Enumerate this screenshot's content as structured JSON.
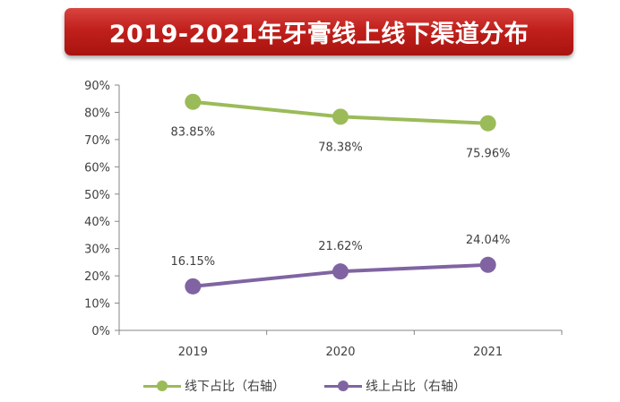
{
  "title": "2019-2021年牙膏线上线下渠道分布",
  "chart_data": {
    "type": "line",
    "title": "2019-2021年牙膏线上线下渠道分布",
    "categories": [
      "2019",
      "2020",
      "2021"
    ],
    "ylim": [
      0,
      90
    ],
    "yticks": [
      "0%",
      "10%",
      "20%",
      "30%",
      "40%",
      "50%",
      "60%",
      "70%",
      "80%",
      "90%"
    ],
    "grid": false,
    "legend_position": "bottom",
    "series": [
      {
        "name": "线下占比（右轴）",
        "values": [
          83.85,
          78.38,
          75.96
        ],
        "labels": [
          "83.85%",
          "78.38%",
          "75.96%"
        ],
        "color": "#9bbb59"
      },
      {
        "name": "线上占比（右轴）",
        "values": [
          16.15,
          21.62,
          24.04
        ],
        "labels": [
          "16.15%",
          "21.62%",
          "24.04%"
        ],
        "color": "#8064a2"
      }
    ]
  }
}
